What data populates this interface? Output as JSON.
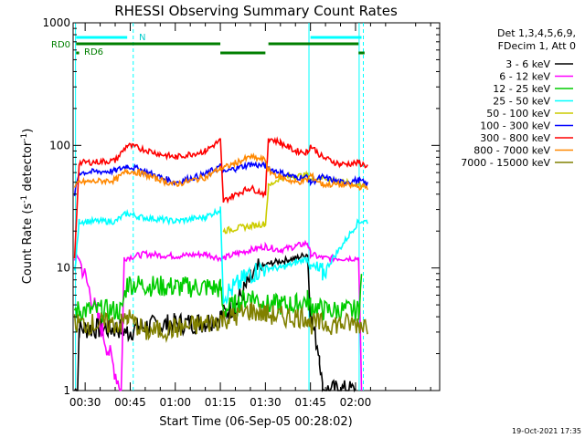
{
  "chart_data": {
    "type": "line",
    "title": "RHESSI Observing Summary Count Rates",
    "xlabel": "Start Time (06-Sep-05 00:28:02)",
    "ylabel_main": "Count Rate (s",
    "ylabel_sup1": "-1",
    "ylabel_mid": " detector",
    "ylabel_sup2": "-1",
    "ylabel_end": ")",
    "yscale": "log",
    "ylim": [
      1,
      1000
    ],
    "xlim_minutes": [
      26,
      148
    ],
    "yticks": [
      {
        "value": 1,
        "label": "1"
      },
      {
        "value": 10,
        "label": "10"
      },
      {
        "value": 100,
        "label": "100"
      },
      {
        "value": 1000,
        "label": "1000"
      }
    ],
    "xticks": [
      {
        "value": 30,
        "label": "00:30"
      },
      {
        "value": 45,
        "label": "00:45"
      },
      {
        "value": 60,
        "label": "01:00"
      },
      {
        "value": 75,
        "label": "01:15"
      },
      {
        "value": 90,
        "label": "01:30"
      },
      {
        "value": 105,
        "label": "01:45"
      },
      {
        "value": 120,
        "label": "02:00"
      }
    ],
    "legend_header": [
      "Det 1,3,4,5,6,9,",
      "FDecim 1, Att 0"
    ],
    "legend_position": "right",
    "series": [
      {
        "name": "3 - 6 keV",
        "color": "#000000",
        "points": [
          [
            26.5,
            1
          ],
          [
            27.5,
            1
          ],
          [
            28,
            3.2
          ],
          [
            42,
            3.2
          ],
          [
            44,
            3
          ],
          [
            48,
            3.3
          ],
          [
            60,
            3.5
          ],
          [
            70,
            3.6
          ],
          [
            75,
            4
          ],
          [
            80,
            5
          ],
          [
            85,
            8
          ],
          [
            88,
            10
          ],
          [
            92,
            11
          ],
          [
            100,
            12
          ],
          [
            104,
            13
          ],
          [
            105,
            4
          ],
          [
            108,
            2
          ],
          [
            109,
            1
          ],
          [
            120,
            1
          ]
        ]
      },
      {
        "name": "6 - 12 keV",
        "color": "#ff00ff",
        "points": [
          [
            26.5,
            12
          ],
          [
            28,
            12
          ],
          [
            42,
            1
          ],
          [
            43,
            12
          ],
          [
            50,
            13
          ],
          [
            60,
            12.5
          ],
          [
            70,
            13
          ],
          [
            75,
            12
          ],
          [
            76,
            12
          ],
          [
            80,
            13
          ],
          [
            85,
            14
          ],
          [
            90,
            15
          ],
          [
            95,
            14
          ],
          [
            100,
            15
          ],
          [
            104,
            16
          ],
          [
            105,
            13
          ],
          [
            109,
            12
          ],
          [
            121,
            12
          ],
          [
            122,
            1
          ]
        ]
      },
      {
        "name": "12 - 25 keV",
        "color": "#00cc00",
        "points": [
          [
            26.5,
            4.5
          ],
          [
            28,
            4.5
          ],
          [
            42,
            4.5
          ],
          [
            44,
            7.5
          ],
          [
            50,
            7.2
          ],
          [
            60,
            7
          ],
          [
            70,
            7
          ],
          [
            75,
            6.8
          ],
          [
            76,
            4.5
          ],
          [
            80,
            5
          ],
          [
            85,
            6
          ],
          [
            90,
            5
          ],
          [
            95,
            5
          ],
          [
            100,
            5
          ],
          [
            104,
            5.5
          ],
          [
            105,
            5
          ],
          [
            109,
            4.5
          ],
          [
            121,
            4.5
          ],
          [
            122,
            8
          ]
        ]
      },
      {
        "name": "25 - 50 keV",
        "color": "#00ffff",
        "points": [
          [
            26.5,
            9
          ],
          [
            28,
            24
          ],
          [
            40,
            24
          ],
          [
            44,
            28
          ],
          [
            48,
            26
          ],
          [
            55,
            25
          ],
          [
            60,
            24
          ],
          [
            70,
            26
          ],
          [
            75,
            30
          ],
          [
            76,
            6
          ],
          [
            80,
            7
          ],
          [
            85,
            9
          ],
          [
            90,
            10
          ],
          [
            95,
            10
          ],
          [
            100,
            11
          ],
          [
            104,
            12
          ],
          [
            105,
            10
          ],
          [
            109,
            9
          ],
          [
            121,
            24
          ],
          [
            124,
            24
          ]
        ]
      },
      {
        "name": "50 - 100 keV",
        "color": "#cccc00",
        "points": [
          [
            76,
            20
          ],
          [
            80,
            21
          ],
          [
            85,
            22
          ],
          [
            90,
            23
          ],
          [
            91,
            46
          ],
          [
            95,
            55
          ],
          [
            100,
            56
          ],
          [
            104,
            57
          ],
          [
            105,
            52
          ],
          [
            109,
            55
          ],
          [
            115,
            50
          ],
          [
            121,
            48
          ],
          [
            124,
            48
          ]
        ]
      },
      {
        "name": "100 - 300 keV",
        "color": "#0000ff",
        "points": [
          [
            26.5,
            40
          ],
          [
            28,
            60
          ],
          [
            40,
            62
          ],
          [
            44,
            68
          ],
          [
            48,
            64
          ],
          [
            55,
            55
          ],
          [
            60,
            50
          ],
          [
            70,
            58
          ],
          [
            75,
            68
          ],
          [
            76,
            60
          ],
          [
            80,
            65
          ],
          [
            85,
            70
          ],
          [
            90,
            68
          ],
          [
            91,
            65
          ],
          [
            95,
            60
          ],
          [
            100,
            55
          ],
          [
            104,
            55
          ],
          [
            105,
            50
          ],
          [
            109,
            55
          ],
          [
            115,
            50
          ],
          [
            121,
            52
          ],
          [
            124,
            48
          ]
        ]
      },
      {
        "name": "300 - 800 keV",
        "color": "#ff0000",
        "points": [
          [
            26.5,
            12
          ],
          [
            28,
            72
          ],
          [
            40,
            75
          ],
          [
            44,
            100
          ],
          [
            48,
            95
          ],
          [
            55,
            85
          ],
          [
            60,
            80
          ],
          [
            70,
            90
          ],
          [
            75,
            110
          ],
          [
            76,
            35
          ],
          [
            80,
            40
          ],
          [
            85,
            45
          ],
          [
            90,
            40
          ],
          [
            91,
            115
          ],
          [
            95,
            105
          ],
          [
            100,
            90
          ],
          [
            104,
            88
          ],
          [
            105,
            100
          ],
          [
            109,
            80
          ],
          [
            115,
            70
          ],
          [
            121,
            72
          ],
          [
            124,
            68
          ]
        ]
      },
      {
        "name": "800 - 7000 keV",
        "color": "#ff8800",
        "points": [
          [
            26.5,
            45
          ],
          [
            28,
            50
          ],
          [
            40,
            52
          ],
          [
            44,
            62
          ],
          [
            48,
            60
          ],
          [
            55,
            52
          ],
          [
            60,
            48
          ],
          [
            70,
            55
          ],
          [
            75,
            65
          ],
          [
            76,
            65
          ],
          [
            80,
            72
          ],
          [
            85,
            80
          ],
          [
            90,
            76
          ],
          [
            91,
            62
          ],
          [
            95,
            55
          ],
          [
            100,
            50
          ],
          [
            104,
            52
          ],
          [
            105,
            57
          ],
          [
            109,
            48
          ],
          [
            115,
            48
          ],
          [
            121,
            46
          ],
          [
            124,
            46
          ]
        ]
      },
      {
        "name": "7000 - 15000 keV",
        "color": "#808000",
        "points": [
          [
            26.5,
            3.5
          ],
          [
            28,
            3.5
          ],
          [
            42,
            3.5
          ],
          [
            44,
            4
          ],
          [
            50,
            3
          ],
          [
            60,
            3.2
          ],
          [
            70,
            3.5
          ],
          [
            75,
            3.8
          ],
          [
            80,
            4
          ],
          [
            85,
            4.5
          ],
          [
            90,
            4.2
          ],
          [
            95,
            4
          ],
          [
            100,
            4
          ],
          [
            104,
            4
          ],
          [
            105,
            3.5
          ],
          [
            109,
            3.5
          ],
          [
            121,
            3.5
          ],
          [
            124,
            3.5
          ]
        ]
      }
    ],
    "annotations": {
      "saa_label": "N",
      "rd0_label": "RD0",
      "rd6_label": "RD6",
      "timestamp": "19-Oct-2021 17:35"
    }
  }
}
